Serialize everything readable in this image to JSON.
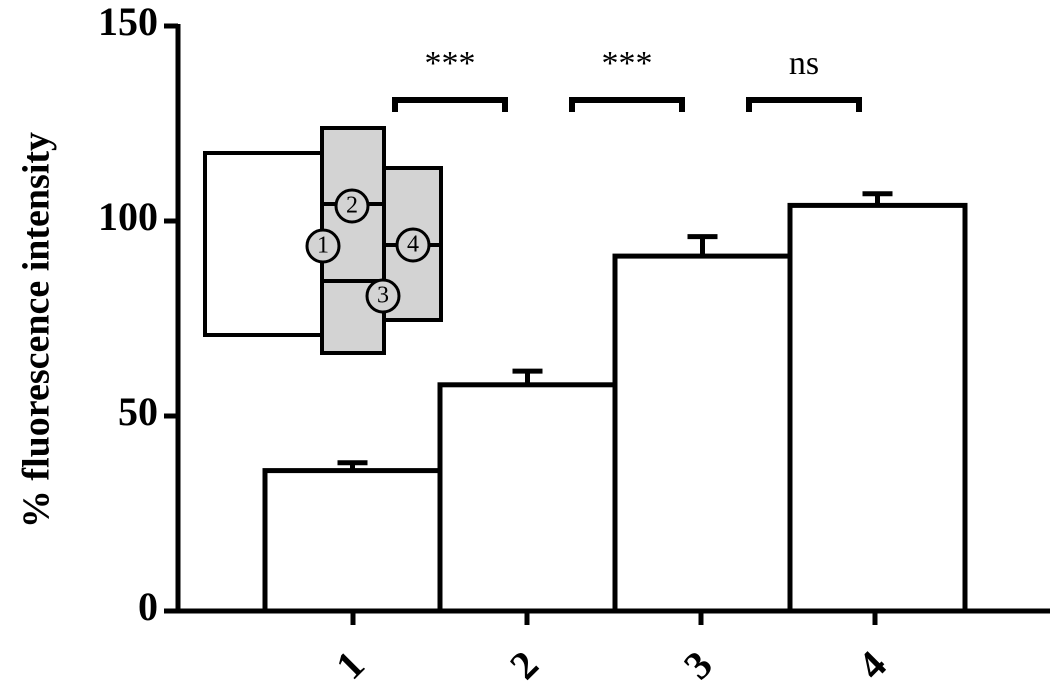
{
  "chart_data": {
    "type": "bar",
    "ylabel": "% fluorescence intensity",
    "categories": [
      "1",
      "2",
      "3",
      "4"
    ],
    "values": [
      36,
      58,
      91,
      104
    ],
    "errors": [
      2,
      3.5,
      5,
      3
    ],
    "color": "#ffffff",
    "ylim": [
      0,
      150
    ],
    "yticks": [
      0,
      50,
      100,
      150
    ],
    "annotations": [
      "***",
      "***",
      "ns"
    ]
  },
  "inset": {
    "labels": [
      "1",
      "2",
      "3",
      "4"
    ]
  }
}
